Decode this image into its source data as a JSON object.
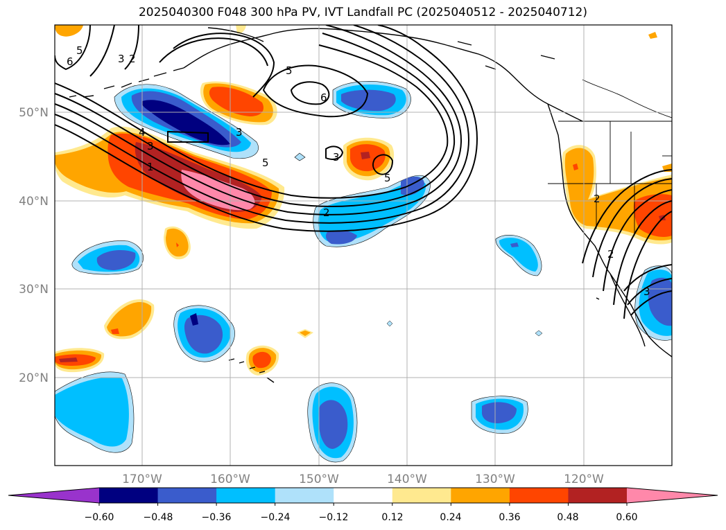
{
  "title": "2025040300 F048 300 hPa PV, IVT Landfall PC (2025040512 - 2025040712)",
  "map": {
    "lat_range": [
      10,
      60
    ],
    "lon_range": [
      -180,
      -110
    ],
    "lat_ticks": [
      "50°N",
      "40°N",
      "30°N",
      "20°N"
    ],
    "lon_ticks": [
      "170°W",
      "160°W",
      "150°W",
      "140°W",
      "130°W",
      "120°W"
    ],
    "gridlines": true
  },
  "contour_labels": [
    "6",
    "5",
    "3",
    "2",
    "5",
    "6",
    "4",
    "3",
    "1",
    "3",
    "3",
    "5",
    "5",
    "2",
    "2",
    "3",
    "2"
  ],
  "colorbar": {
    "extend": "both",
    "tick_labels": [
      "−0.60",
      "−0.48",
      "−0.36",
      "−0.24",
      "−0.12",
      "0.12",
      "0.24",
      "0.36",
      "0.48",
      "0.60"
    ],
    "colors": [
      "#9933cc",
      "#000080",
      "#3a5ccc",
      "#00bfff",
      "#afe1fa",
      "#ffffff",
      "#ffe98f",
      "#ffa500",
      "#ff4500",
      "#b22222",
      "#ff88aa"
    ]
  }
}
